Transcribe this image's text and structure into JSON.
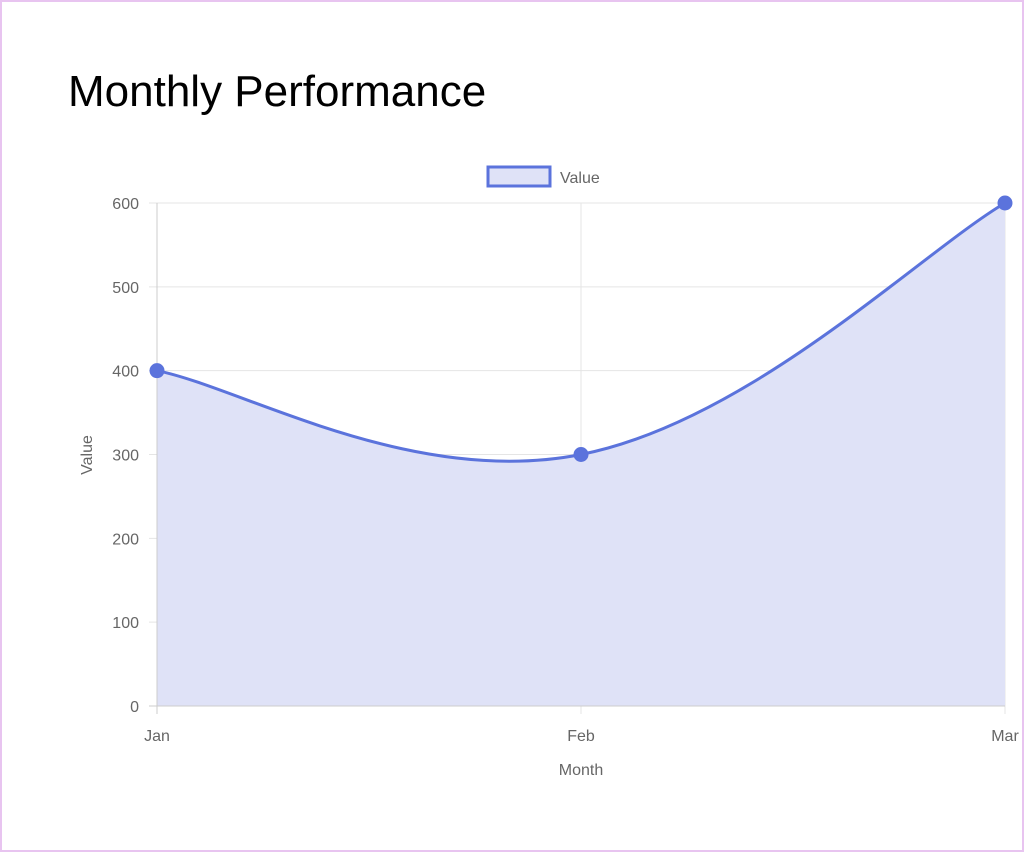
{
  "page": {
    "title": "Monthly Performance"
  },
  "chart_data": {
    "type": "area",
    "categories": [
      "Jan",
      "Feb",
      "Mar"
    ],
    "series": [
      {
        "name": "Value",
        "values": [
          400,
          300,
          600
        ],
        "line_color": "#5b73dc",
        "fill_color": "#dfe2f7"
      }
    ],
    "xlabel": "Month",
    "ylabel": "Value",
    "ylim": [
      0,
      600
    ],
    "yticks": [
      0,
      100,
      200,
      300,
      400,
      500,
      600
    ],
    "grid": true,
    "legend_position": "top-center",
    "grid_color": "#e5e5e5",
    "axis_color": "#cccccc"
  }
}
